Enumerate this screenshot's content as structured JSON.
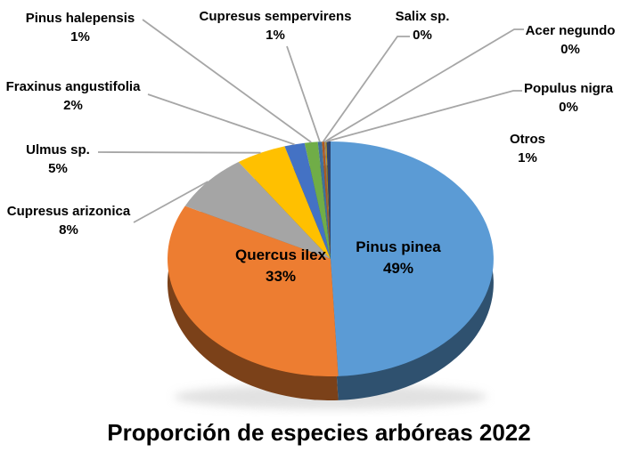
{
  "chart_data": {
    "type": "pie",
    "style": "3d-pie",
    "title": "Proporción de especies arbóreas 2022",
    "legend": "none",
    "leader_line_color": "#A6A6A6",
    "background_color": "#FFFFFF",
    "slices": [
      {
        "name": "Pinus pinea",
        "pct": "49%",
        "value": 49,
        "color": "#5B9BD5",
        "label_placement": "inside"
      },
      {
        "name": "Quercus ilex",
        "pct": "33%",
        "value": 33,
        "color": "#ED7D31",
        "label_placement": "inside"
      },
      {
        "name": "Cupresus arizonica",
        "pct": "8%",
        "value": 8,
        "color": "#A5A5A5",
        "label_placement": "outside"
      },
      {
        "name": "Ulmus sp.",
        "pct": "5%",
        "value": 5,
        "color": "#FFC000",
        "label_placement": "outside"
      },
      {
        "name": "Fraxinus angustifolia",
        "pct": "2%",
        "value": 2,
        "color": "#4472C4",
        "label_placement": "outside"
      },
      {
        "name": "Pinus halepensis",
        "pct": "1%",
        "value": 1,
        "color": "#70AD47",
        "label_placement": "outside"
      },
      {
        "name": "Cupresus sempervirens",
        "pct": "1%",
        "value": 1,
        "color": "#41719C",
        "label_placement": "outside"
      },
      {
        "name": "Salix sp.",
        "pct": "0%",
        "value": 0,
        "color": "#AE5A21",
        "label_placement": "outside"
      },
      {
        "name": "Acer negundo",
        "pct": "0%",
        "value": 0,
        "color": "#7B7B7B",
        "label_placement": "outside"
      },
      {
        "name": "Populus nigra",
        "pct": "0%",
        "value": 0,
        "color": "#BF8F00",
        "label_placement": "outside"
      },
      {
        "name": "Otros",
        "pct": "1%",
        "value": 1,
        "color": "#2D4470",
        "label_placement": "outside"
      }
    ]
  }
}
